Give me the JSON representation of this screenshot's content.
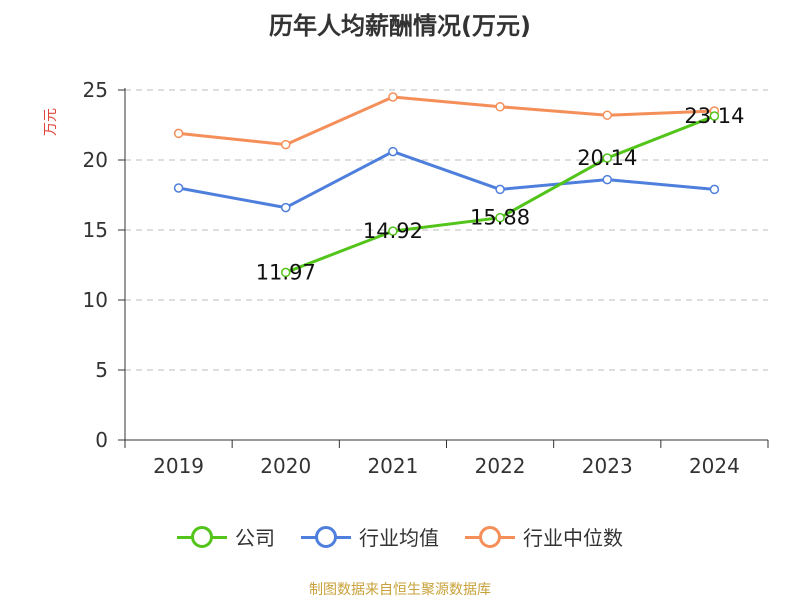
{
  "title": "历年人均薪酬情况(万元)",
  "y_unit": "万元",
  "source": "制图数据来自恒生聚源数据库",
  "chart_data": {
    "type": "line",
    "title": "历年人均薪酬情况(万元)",
    "ylabel": "万元",
    "categories": [
      "2019",
      "2020",
      "2021",
      "2022",
      "2023",
      "2024"
    ],
    "ylim": [
      0,
      25
    ],
    "yticks": [
      0,
      5,
      10,
      15,
      20,
      25
    ],
    "grid": true,
    "legend_position": "bottom",
    "series": [
      {
        "name": "公司",
        "color": "#52c41a",
        "values": [
          null,
          11.97,
          14.92,
          15.88,
          20.14,
          23.14
        ],
        "labels": [
          null,
          "11.97",
          "14.92",
          "15.88",
          "20.14",
          "23.14"
        ]
      },
      {
        "name": "行业均值",
        "color": "#4e7fdc",
        "values": [
          18.0,
          16.6,
          20.6,
          17.9,
          18.6,
          17.9
        ]
      },
      {
        "name": "行业中位数",
        "color": "#f58f59",
        "values": [
          21.9,
          21.1,
          24.5,
          23.8,
          23.2,
          23.5
        ]
      }
    ]
  }
}
